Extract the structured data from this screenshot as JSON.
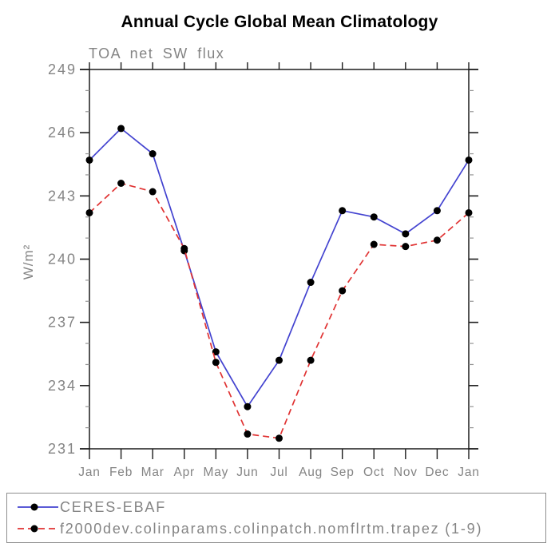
{
  "page": {
    "title": "Annual Cycle Global Mean Climatology"
  },
  "chart_data": {
    "type": "line",
    "title": "Annual Cycle Global Mean Climatology",
    "subtitle": "TOA net SW flux",
    "ylabel": "W/m²",
    "xlabel": "",
    "categories": [
      "Jan",
      "Feb",
      "Mar",
      "Apr",
      "May",
      "Jun",
      "Jul",
      "Aug",
      "Sep",
      "Oct",
      "Nov",
      "Dec",
      "Jan"
    ],
    "ylim": [
      231,
      249
    ],
    "ytick_major": [
      231,
      234,
      237,
      240,
      243,
      246,
      249
    ],
    "ytick_minor_step": 1,
    "grid": false,
    "legend_position": "bottom-box",
    "series": [
      {
        "name": "CERES-EBAF",
        "line_style": "solid",
        "color": "#4343d0",
        "marker": "circle",
        "marker_color": "#000000",
        "values": [
          244.7,
          246.2,
          245.0,
          240.4,
          235.6,
          233.0,
          235.2,
          238.9,
          242.3,
          242.0,
          241.2,
          242.3,
          244.7
        ]
      },
      {
        "name": "f2000dev.colinparams.colinpatch.nomflrtm.trapez (1-9)",
        "line_style": "dashed",
        "color": "#e03232",
        "marker": "circle",
        "marker_color": "#000000",
        "values": [
          242.2,
          243.6,
          243.2,
          240.5,
          235.1,
          231.7,
          231.5,
          235.2,
          238.5,
          240.7,
          240.6,
          240.9,
          242.2
        ]
      }
    ]
  },
  "colors": {
    "title": "#000000",
    "label": "#848484",
    "axis": "#1c1c1c",
    "minor_tick": "#969696",
    "legend_border": "#8e8e8e",
    "background": "#ffffff"
  }
}
